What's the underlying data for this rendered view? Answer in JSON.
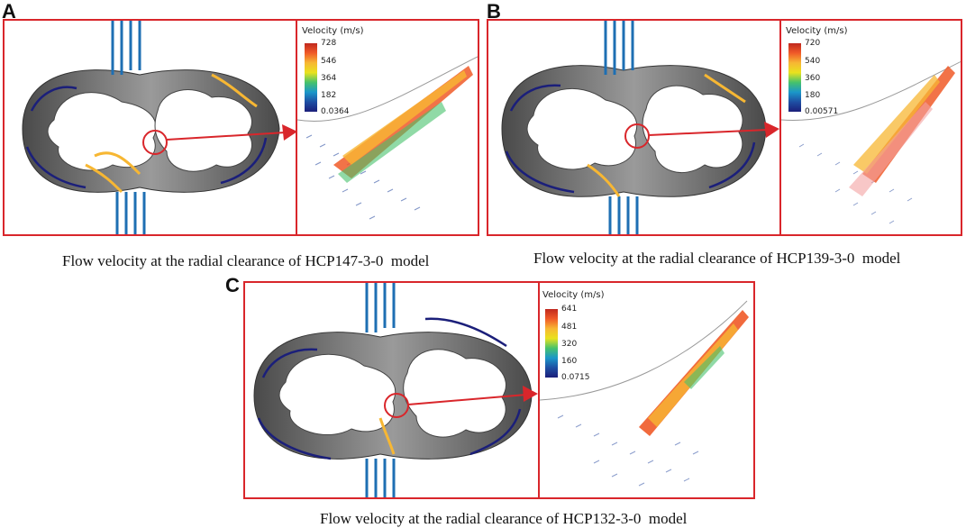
{
  "panels": [
    {
      "letter": "A",
      "caption": "Flow velocity at the radial clearance of HCP147-3-0  model",
      "colorbar": {
        "title": "Velocity (m/s)",
        "ticks": [
          "728",
          "546",
          "364",
          "182",
          "0.0364"
        ]
      }
    },
    {
      "letter": "B",
      "caption": "Flow velocity at the radial clearance of HCP139-3-0  model",
      "colorbar": {
        "title": "Velocity (m/s)",
        "ticks": [
          "720",
          "540",
          "360",
          "180",
          "0.00571"
        ]
      }
    },
    {
      "letter": "C",
      "caption": "Flow velocity at the radial clearance of HCP132-3-0  model",
      "colorbar": {
        "title": "Velocity (m/s)",
        "ticks": [
          "641",
          "481",
          "320",
          "160",
          "0.0715"
        ]
      }
    }
  ],
  "colors": {
    "frame": "#d9262b",
    "casing": "#6f6f6f",
    "streamline_low": "#1b1f7a",
    "streamline_high": "#f05a28"
  }
}
